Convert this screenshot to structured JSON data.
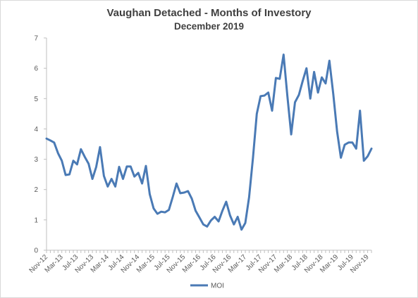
{
  "chart_data": {
    "type": "line",
    "title": "Vaughan Detached - Months of Investory",
    "subtitle": "December 2019",
    "xlabel": "",
    "ylabel": "",
    "ylim": [
      0,
      7
    ],
    "yticks": [
      "0",
      "1",
      "2",
      "3",
      "4",
      "5",
      "6",
      "7"
    ],
    "grid": false,
    "legend_position": "bottom",
    "line_color": "#4a7ab5",
    "x": [
      "Nov-12",
      "Dec-12",
      "Jan-13",
      "Feb-13",
      "Mar-13",
      "Apr-13",
      "May-13",
      "Jun-13",
      "Jul-13",
      "Aug-13",
      "Sep-13",
      "Oct-13",
      "Nov-13",
      "Dec-13",
      "Jan-14",
      "Feb-14",
      "Mar-14",
      "Apr-14",
      "May-14",
      "Jun-14",
      "Jul-14",
      "Aug-14",
      "Sep-14",
      "Oct-14",
      "Nov-14",
      "Dec-14",
      "Jan-15",
      "Feb-15",
      "Mar-15",
      "Apr-15",
      "May-15",
      "Jun-15",
      "Jul-15",
      "Aug-15",
      "Sep-15",
      "Oct-15",
      "Nov-15",
      "Dec-15",
      "Jan-16",
      "Feb-16",
      "Mar-16",
      "Apr-16",
      "May-16",
      "Jun-16",
      "Jul-16",
      "Aug-16",
      "Sep-16",
      "Oct-16",
      "Nov-16",
      "Dec-16",
      "Jan-17",
      "Feb-17",
      "Mar-17",
      "Apr-17",
      "May-17",
      "Jun-17",
      "Jul-17",
      "Aug-17",
      "Sep-17",
      "Oct-17",
      "Nov-17",
      "Dec-17",
      "Jan-18",
      "Feb-18",
      "Mar-18",
      "Apr-18",
      "May-18",
      "Jun-18",
      "Jul-18",
      "Aug-18",
      "Sep-18",
      "Oct-18",
      "Nov-18",
      "Dec-18",
      "Jan-19",
      "Feb-19",
      "Mar-19",
      "Apr-19",
      "May-19",
      "Jun-19",
      "Jul-19",
      "Aug-19",
      "Sep-19",
      "Oct-19",
      "Nov-19",
      "Dec-19"
    ],
    "xtick_labels": [
      "Nov-12",
      "Mar-13",
      "Jul-13",
      "Nov-13",
      "Mar-14",
      "Jul-14",
      "Nov-14",
      "Mar-15",
      "Jul-15",
      "Nov-15",
      "Mar-16",
      "Jul-16",
      "Nov-16",
      "Mar-17",
      "Jul-17",
      "Nov-17",
      "Mar-18",
      "Jul-18",
      "Nov-18",
      "Mar-19",
      "Jul-19",
      "Nov-19"
    ],
    "series": [
      {
        "name": "MOI",
        "values": [
          3.68,
          3.62,
          3.55,
          3.2,
          2.95,
          2.48,
          2.5,
          2.95,
          2.83,
          3.33,
          3.08,
          2.85,
          2.35,
          2.75,
          3.4,
          2.45,
          2.1,
          2.35,
          2.1,
          2.75,
          2.35,
          2.76,
          2.76,
          2.43,
          2.55,
          2.2,
          2.78,
          1.85,
          1.38,
          1.2,
          1.27,
          1.25,
          1.33,
          1.75,
          2.2,
          1.88,
          1.9,
          1.95,
          1.7,
          1.3,
          1.08,
          0.85,
          0.78,
          0.98,
          1.1,
          0.95,
          1.3,
          1.6,
          1.15,
          0.85,
          1.1,
          0.68,
          0.9,
          1.75,
          3.05,
          4.5,
          5.08,
          5.1,
          5.2,
          4.6,
          5.68,
          5.65,
          6.45,
          5.08,
          3.82,
          4.88,
          5.12,
          5.58,
          6.0,
          5.0,
          5.88,
          5.2,
          5.7,
          5.5,
          6.25,
          5.15,
          3.92,
          3.05,
          3.48,
          3.55,
          3.55,
          3.35,
          4.6,
          2.95,
          3.1,
          3.35
        ]
      }
    ]
  }
}
